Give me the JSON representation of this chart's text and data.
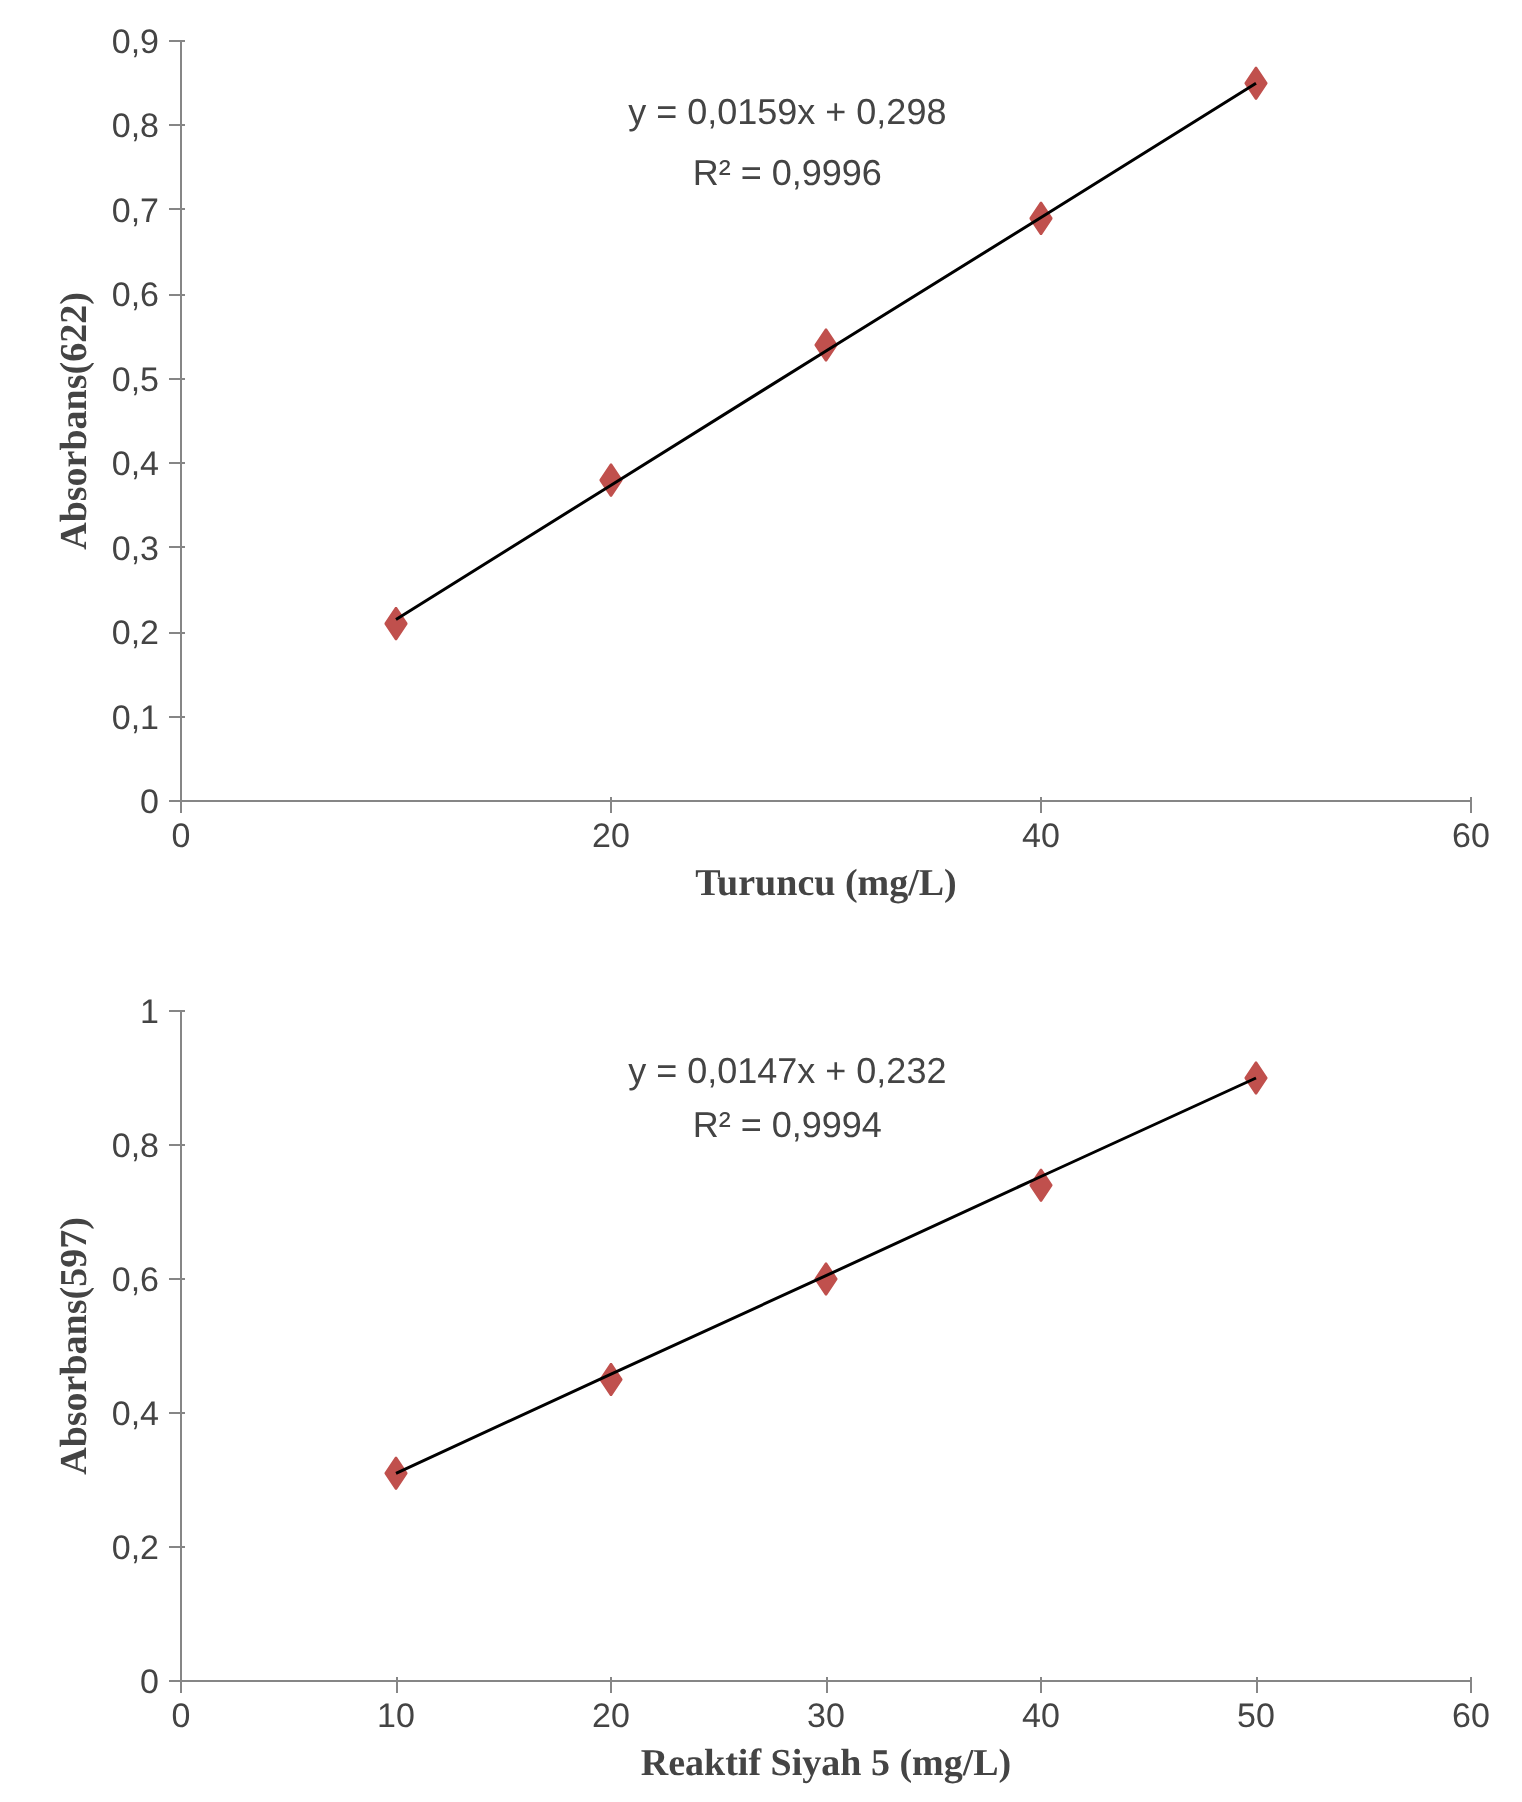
{
  "chart_data": [
    {
      "type": "scatter",
      "xlabel": "Turuncu (mg/L)",
      "ylabel": "Absorbans(622)",
      "x": [
        10,
        20,
        30,
        40,
        50
      ],
      "grid": false,
      "series": [
        {
          "color": "#c0504d",
          "marker": "diamond",
          "values": [
            0.21,
            0.38,
            0.54,
            0.69,
            0.85
          ]
        },
        {
          "type": "line",
          "marker": "none",
          "color": "#000000",
          "values": [
            0.215,
            0.374,
            0.533,
            0.691,
            0.85
          ]
        }
      ],
      "annotations": [
        "y = 0,0159x + 0,298",
        "R² = 0,9996"
      ],
      "xlim": [
        0,
        60
      ],
      "xticks": [
        0,
        20,
        40,
        60
      ],
      "ylim": [
        0,
        0.9
      ],
      "yticks": [
        0,
        {
          "value": 0.1,
          "label": "0,1"
        },
        {
          "value": 0.2,
          "label": "0,2"
        },
        {
          "value": 0.3,
          "label": "0,3"
        },
        {
          "value": 0.4,
          "label": "0,4"
        },
        {
          "value": 0.5,
          "label": "0,5"
        },
        {
          "value": 0.6,
          "label": "0,6"
        },
        {
          "value": 0.7,
          "label": "0,7"
        },
        {
          "value": 0.8,
          "label": "0,8"
        },
        {
          "value": 0.9,
          "label": "0,9"
        }
      ]
    },
    {
      "type": "scatter",
      "xlabel": "Reaktif Siyah 5 (mg/L)",
      "ylabel": "Absorbans(597)",
      "x": [
        10,
        20,
        30,
        40,
        50
      ],
      "grid": false,
      "series": [
        {
          "color": "#c0504d",
          "marker": "diamond",
          "values": [
            0.31,
            0.45,
            0.6,
            0.74,
            0.9
          ]
        },
        {
          "type": "line",
          "marker": "none",
          "color": "#000000",
          "values": [
            0.31,
            0.458,
            0.605,
            0.753,
            0.9
          ]
        }
      ],
      "annotations": [
        "y = 0,0147x + 0,232",
        "R² = 0,9994"
      ],
      "xlim": [
        0,
        60
      ],
      "xticks": [
        0,
        10,
        20,
        30,
        40,
        50,
        60
      ],
      "ylim": [
        0,
        1
      ],
      "yticks": [
        0,
        {
          "value": 0.2,
          "label": "0,2"
        },
        {
          "value": 0.4,
          "label": "0,4"
        },
        {
          "value": 0.6,
          "label": "0,6"
        },
        {
          "value": 0.8,
          "label": "0,8"
        },
        1
      ]
    }
  ]
}
